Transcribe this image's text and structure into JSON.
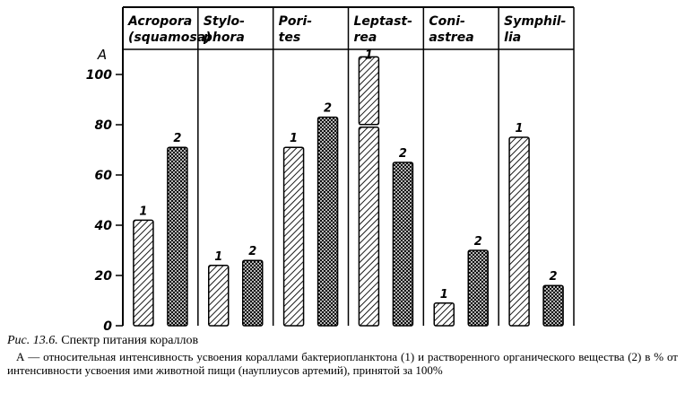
{
  "chart_data": {
    "type": "bar",
    "ylabel": "A",
    "ylim": [
      0,
      113
    ],
    "yticks": [
      0,
      20,
      40,
      60,
      80,
      100
    ],
    "categories": [
      {
        "line1": "Acropora",
        "line2": "(squamosa)"
      },
      {
        "line1": "Stylo-",
        "line2": "phora"
      },
      {
        "line1": "Pori-",
        "line2": "tes"
      },
      {
        "line1": "Leptast-",
        "line2": "rea"
      },
      {
        "line1": "Coni-",
        "line2": "astrea"
      },
      {
        "line1": "Symphil-",
        "line2": "lia"
      }
    ],
    "series": [
      {
        "name": "1",
        "pattern": "diagonal-hatch",
        "values": [
          42,
          24,
          71,
          [
            79,
            107
          ],
          9,
          75
        ]
      },
      {
        "name": "2",
        "pattern": "cross-hatch",
        "values": [
          71,
          26,
          83,
          65,
          30,
          16
        ]
      }
    ],
    "grid": false
  },
  "caption": {
    "figure": "Рис. 13.6.",
    "title": "Спектр питания кораллов",
    "body": "А — относительная интенсивность усвоения кораллами бактериопланктона (1) и растворенного органического вещества (2) в % от интенсивности усвоения ими животной пищи (науплиусов артемий), принятой за 100%"
  },
  "colors": {
    "ink": "#000000",
    "paper": "#ffffff"
  }
}
